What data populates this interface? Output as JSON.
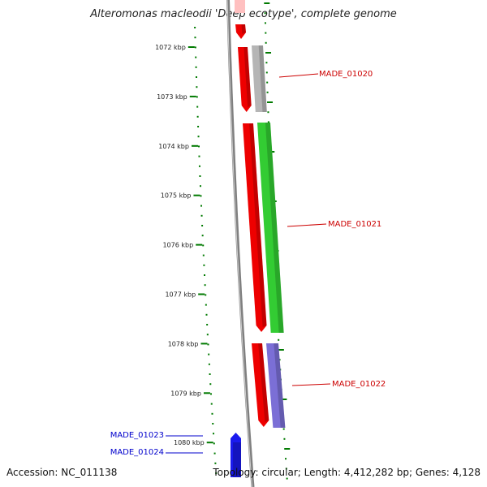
{
  "title": "Alteromonas macleodii 'Deep ecotype', complete genome",
  "accession": "Accession: NC_011138",
  "summary": "Topology: circular; Length: 4,412,282 bp; Genes: 4,128",
  "colors": {
    "backbone": "#808080",
    "ticks": "#007a00",
    "cds_red": "#ee0000",
    "gene_green": "#33cc33",
    "gene_gray": "#b5b5b5",
    "gene_purple": "#7b6fd6",
    "gene_pink": "#ffc0c0",
    "gene_blue": "#1a1aee",
    "label_red": "#cc0000",
    "label_blue": "#0000cc"
  },
  "ticks": [
    {
      "kbp": 1072,
      "label": "1072 kbp"
    },
    {
      "kbp": 1073,
      "label": "1073 kbp"
    },
    {
      "kbp": 1074,
      "label": "1074 kbp"
    },
    {
      "kbp": 1075,
      "label": "1075 kbp"
    },
    {
      "kbp": 1076,
      "label": "1076 kbp"
    },
    {
      "kbp": 1077,
      "label": "1077 kbp"
    },
    {
      "kbp": 1078,
      "label": "1078 kbp"
    },
    {
      "kbp": 1079,
      "label": "1079 kbp"
    },
    {
      "kbp": 1080,
      "label": "1080 kbp"
    }
  ],
  "features": [
    {
      "name": "MADE_01020",
      "color": "label_red"
    },
    {
      "name": "MADE_01021",
      "color": "label_red"
    },
    {
      "name": "MADE_01022",
      "color": "label_red"
    },
    {
      "name": "MADE_01023",
      "color": "label_blue"
    },
    {
      "name": "MADE_01024",
      "color": "label_blue"
    }
  ]
}
